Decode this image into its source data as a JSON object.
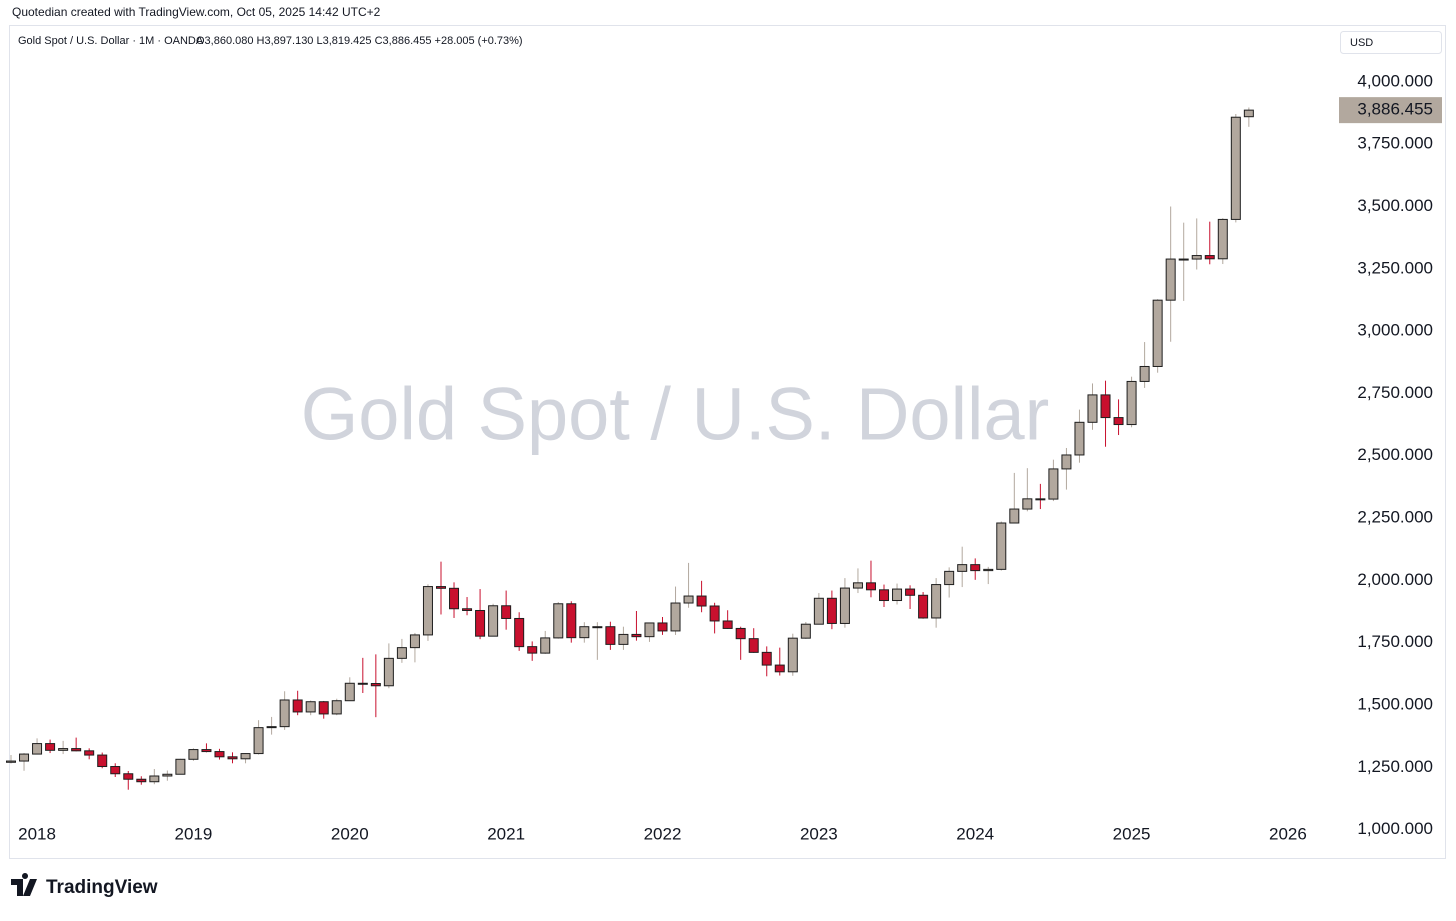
{
  "header": "Quotedian created with TradingView.com, Oct 05, 2025 14:42 UTC+2",
  "footer_logo": "TradingView",
  "chart_data": {
    "type": "candlestick",
    "title": "Gold Spot / U.S. Dollar · 1M · OANDA",
    "ohlc_legend": "O3,860.080 H3,897.130 L3,819.425 C3,886.455 +28.005 (+0.73%)",
    "watermark": "Gold Spot / U.S. Dollar",
    "currency": "USD",
    "categories": [
      null,
      null,
      "2018",
      null,
      null,
      null,
      null,
      null,
      null,
      null,
      null,
      null,
      null,
      null,
      "2019",
      null,
      null,
      null,
      null,
      null,
      null,
      null,
      null,
      null,
      null,
      null,
      "2020",
      null,
      null,
      null,
      null,
      null,
      null,
      null,
      null,
      null,
      null,
      null,
      "2021",
      null,
      null,
      null,
      null,
      null,
      null,
      null,
      null,
      null,
      null,
      null,
      "2022",
      null,
      null,
      null,
      null,
      null,
      null,
      null,
      null,
      null,
      null,
      null,
      "2023",
      null,
      null,
      null,
      null,
      null,
      null,
      null,
      null,
      null,
      null,
      null,
      "2024",
      null,
      null,
      null,
      null,
      null,
      null,
      null,
      null,
      null,
      null,
      null,
      "2025",
      null,
      null,
      null,
      null,
      null,
      null,
      null,
      null,
      null,
      null,
      null,
      "2026"
    ],
    "open": [
      1270,
      1275,
      1303,
      1345,
      1318,
      1325,
      1316,
      1299,
      1253,
      1224,
      1202,
      1192,
      1215,
      1222,
      1282,
      1321,
      1313,
      1292,
      1284,
      1305,
      1409,
      1413,
      1520,
      1472,
      1513,
      1464,
      1517,
      1587,
      1586,
      1577,
      1687,
      1730,
      1781,
      1975,
      1968,
      1886,
      1879,
      1776,
      1898,
      1847,
      1734,
      1708,
      1769,
      1906,
      1770,
      1814,
      1814,
      1743,
      1783,
      1774,
      1829,
      1797,
      1909,
      1937,
      1897,
      1837,
      1807,
      1766,
      1711,
      1660,
      1633,
      1768,
      1824,
      1928,
      1827,
      1969,
      1990,
      1962,
      1919,
      1965,
      1940,
      1849,
      1983,
      2036,
      2063,
      2039,
      2044,
      2230,
      2286,
      2327,
      2326,
      2447,
      2503,
      2634,
      2744,
      2653,
      2625,
      2798,
      2858,
      3124,
      3289,
      3289,
      3303,
      3290,
      3448,
      3860.08,
      null,
      null,
      null
    ],
    "high": [
      1299,
      1307,
      1366,
      1361,
      1356,
      1369,
      1326,
      1309,
      1266,
      1235,
      1214,
      1243,
      1237,
      1284,
      1326,
      1346,
      1324,
      1310,
      1306,
      1439,
      1452,
      1555,
      1557,
      1518,
      1516,
      1525,
      1611,
      1689,
      1703,
      1747,
      1765,
      1789,
      1984,
      2075,
      1992,
      1933,
      1965,
      1906,
      1959,
      1872,
      1755,
      1797,
      1913,
      1916,
      1832,
      1832,
      1834,
      1814,
      1877,
      1830,
      1853,
      1975,
      2070,
      1998,
      1910,
      1880,
      1814,
      1808,
      1735,
      1730,
      1786,
      1833,
      1949,
      1959,
      2009,
      2048,
      2079,
      1983,
      1987,
      1980,
      1953,
      2009,
      2052,
      2135,
      2088,
      2054,
      2236,
      2431,
      2450,
      2387,
      2484,
      2531,
      2685,
      2790,
      2801,
      2726,
      2817,
      2956,
      3128,
      3500,
      3435,
      3452,
      3439,
      3453,
      3871,
      3897.13,
      null,
      null,
      null
    ],
    "low": [
      1265,
      1236,
      1302,
      1307,
      1303,
      1314,
      1282,
      1246,
      1211,
      1160,
      1180,
      1182,
      1196,
      1221,
      1276,
      1310,
      1281,
      1266,
      1266,
      1301,
      1381,
      1400,
      1459,
      1459,
      1445,
      1459,
      1517,
      1548,
      1451,
      1567,
      1669,
      1671,
      1757,
      1863,
      1849,
      1860,
      1764,
      1775,
      1802,
      1717,
      1677,
      1705,
      1766,
      1750,
      1750,
      1681,
      1721,
      1721,
      1758,
      1753,
      1781,
      1781,
      1890,
      1872,
      1787,
      1805,
      1681,
      1709,
      1615,
      1618,
      1617,
      1765,
      1823,
      1804,
      1810,
      1949,
      1932,
      1893,
      1903,
      1885,
      1846,
      1810,
      1931,
      1973,
      2002,
      1985,
      2039,
      2228,
      2277,
      2286,
      2318,
      2364,
      2472,
      2604,
      2536,
      2583,
      2614,
      2772,
      2833,
      2957,
      3121,
      3247,
      3268,
      3269,
      3436,
      3819.425,
      null,
      null,
      null
    ],
    "close": [
      1275,
      1303,
      1345,
      1318,
      1325,
      1316,
      1299,
      1253,
      1224,
      1202,
      1192,
      1215,
      1222,
      1282,
      1321,
      1313,
      1292,
      1284,
      1305,
      1409,
      1413,
      1520,
      1472,
      1513,
      1464,
      1517,
      1587,
      1586,
      1577,
      1687,
      1730,
      1781,
      1975,
      1968,
      1886,
      1879,
      1776,
      1898,
      1847,
      1734,
      1708,
      1769,
      1906,
      1770,
      1814,
      1814,
      1743,
      1783,
      1774,
      1829,
      1797,
      1909,
      1937,
      1897,
      1837,
      1807,
      1766,
      1711,
      1660,
      1633,
      1768,
      1824,
      1928,
      1827,
      1969,
      1990,
      1962,
      1919,
      1965,
      1940,
      1849,
      1983,
      2036,
      2063,
      2039,
      2044,
      2230,
      2286,
      2327,
      2326,
      2447,
      2503,
      2634,
      2744,
      2653,
      2625,
      2798,
      2858,
      3124,
      3289,
      3289,
      3303,
      3290,
      3448,
      3858,
      3886.455,
      null,
      null,
      null
    ],
    "up_color": "#b2a89e",
    "down_color": "#c8102e",
    "border_color": "#1e1e1e",
    "ylim": [
      886,
      4224
    ],
    "yticks": [
      {
        "value": 1000,
        "label": "1,000.000"
      },
      {
        "value": 1250,
        "label": "1,250.000"
      },
      {
        "value": 1500,
        "label": "1,500.000"
      },
      {
        "value": 1750,
        "label": "1,750.000"
      },
      {
        "value": 2000,
        "label": "2,000.000"
      },
      {
        "value": 2250,
        "label": "2,250.000"
      },
      {
        "value": 2500,
        "label": "2,500.000"
      },
      {
        "value": 2750,
        "label": "2,750.000"
      },
      {
        "value": 3000,
        "label": "3,000.000"
      },
      {
        "value": 3250,
        "label": "3,250.000"
      },
      {
        "value": 3500,
        "label": "3,500.000"
      },
      {
        "value": 3750,
        "label": "3,750.000"
      },
      {
        "value": 4000,
        "label": "4,000.000"
      }
    ],
    "last_price": {
      "value": 3886.455,
      "label": "3,886.455"
    },
    "grid": false
  }
}
